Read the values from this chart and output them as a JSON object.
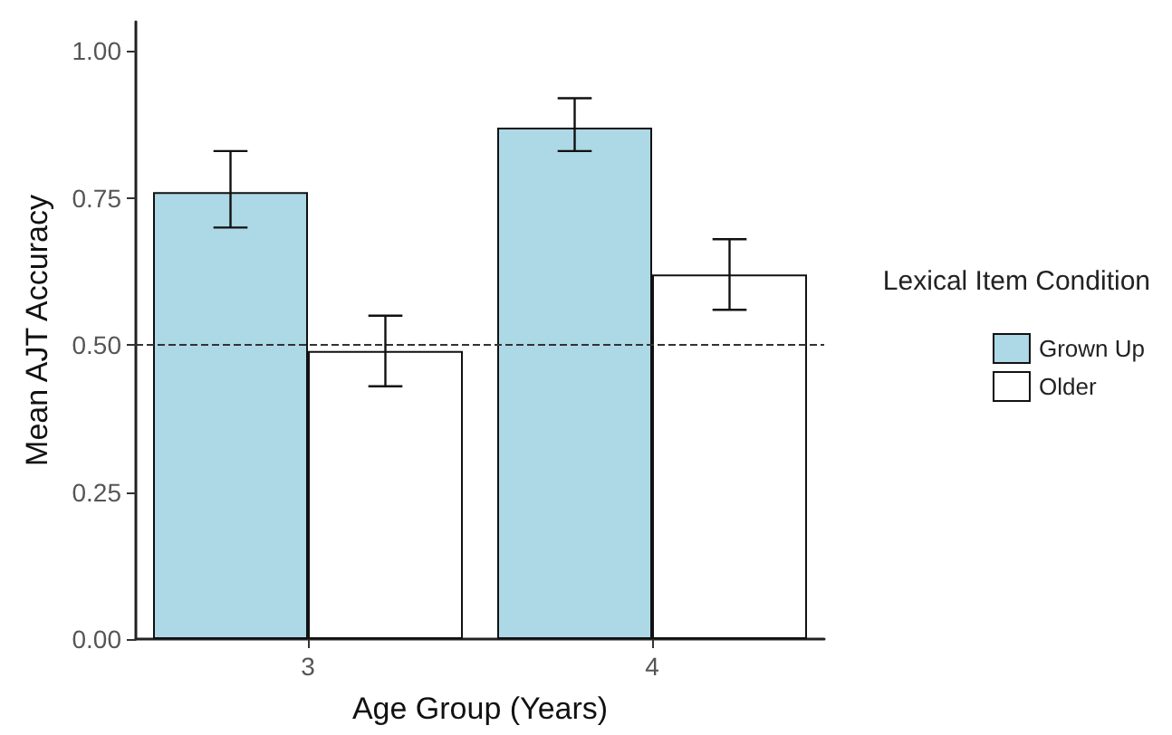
{
  "chart_data": {
    "type": "bar",
    "xlabel": "Age Group (Years)",
    "ylabel": "Mean AJT Accuracy",
    "legend_title": "Lexical Item Condition",
    "categories": [
      "3",
      "4"
    ],
    "series": [
      {
        "name": "Grown Up",
        "color": "#add8e6",
        "values": [
          0.76,
          0.87
        ],
        "errors": [
          [
            0.7,
            0.83
          ],
          [
            0.83,
            0.92
          ]
        ]
      },
      {
        "name": "Older",
        "color": "#ffffff",
        "values": [
          0.49,
          0.62
        ],
        "errors": [
          [
            0.43,
            0.55
          ],
          [
            0.56,
            0.68
          ]
        ]
      }
    ],
    "ylim": [
      0,
      1.05
    ],
    "yticks": [
      {
        "value": 0,
        "label": "0.00"
      },
      {
        "value": 0.25,
        "label": "0.25"
      },
      {
        "value": 0.5,
        "label": "0.50"
      },
      {
        "value": 0.75,
        "label": "0.75"
      },
      {
        "value": 1,
        "label": "1.00"
      }
    ],
    "ref_lines": [
      {
        "axis": "y",
        "value": 0.5,
        "line_style": "dashed",
        "color": "#333333"
      }
    ],
    "grid": false,
    "legend": "right"
  }
}
